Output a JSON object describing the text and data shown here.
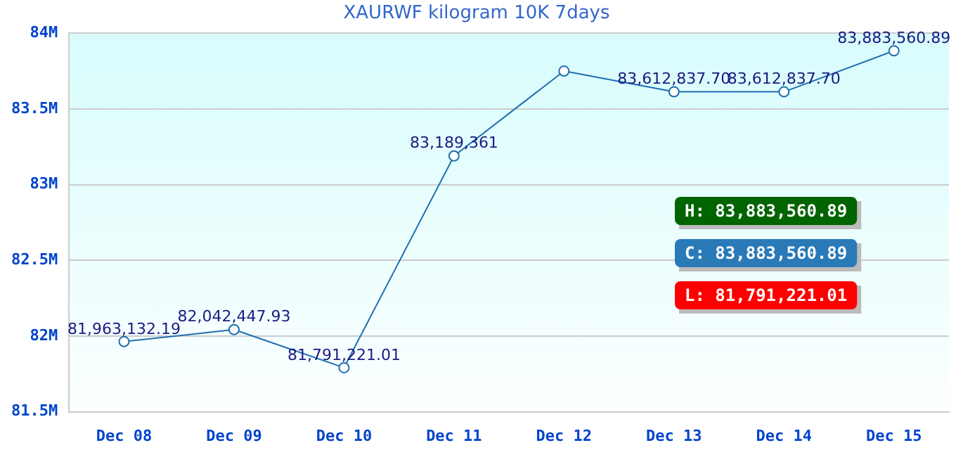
{
  "chart_data": {
    "type": "line",
    "title": "XAURWF kilogram 10K 7days",
    "categories": [
      "Dec 08",
      "Dec 09",
      "Dec 10",
      "Dec 11",
      "Dec 12",
      "Dec 13",
      "Dec 14",
      "Dec 15"
    ],
    "values": [
      81963132.19,
      82042447.93,
      81791221.01,
      83189361,
      83750000,
      83612837.7,
      83612837.7,
      83883560.89
    ],
    "value_labels": [
      "81,963,132.19",
      "82,042,447.93",
      "81,791,221.01",
      "83,189,361",
      null,
      "83,612,837.70",
      "83,612,837.70",
      "83,883,560.89"
    ],
    "color": "#1f6fb0",
    "marker": "circle",
    "grid": "y",
    "legend": false,
    "ylim": [
      81500000,
      84000000
    ],
    "yticks": [
      {
        "value": 81500000,
        "label": "81.5M"
      },
      {
        "value": 82000000,
        "label": "82M"
      },
      {
        "value": 82500000,
        "label": "82.5M"
      },
      {
        "value": 83000000,
        "label": "83M"
      },
      {
        "value": 83500000,
        "label": "83.5M"
      },
      {
        "value": 84000000,
        "label": "84M"
      }
    ],
    "annotations": [
      "H: 83,883,560.89",
      "C: 83,883,560.89",
      "L: 81,791,221.01"
    ]
  }
}
